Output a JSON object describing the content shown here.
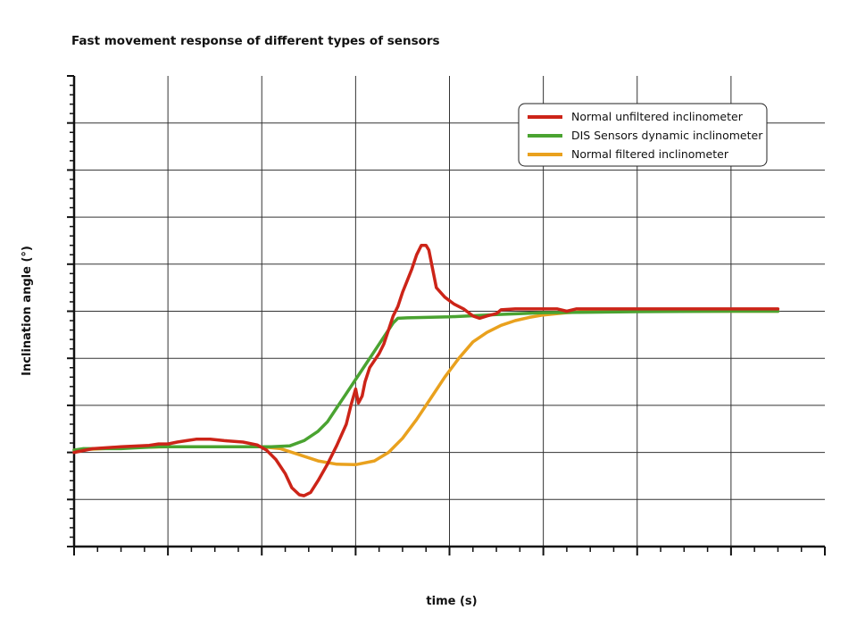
{
  "chart_data": {
    "type": "line",
    "title": "Fast movement response of different types of sensors",
    "xlabel": "time (s)",
    "ylabel": "Inclination angle (°)",
    "xlim": [
      0,
      8
    ],
    "ylim": [
      -2,
      8
    ],
    "grid": true,
    "legend_position": "top-right",
    "series": [
      {
        "name": "Normal unfiltered inclinometer",
        "color": "#cc2418",
        "points": [
          [
            0.0,
            0.0
          ],
          [
            0.2,
            0.08
          ],
          [
            0.5,
            0.12
          ],
          [
            0.8,
            0.15
          ],
          [
            0.9,
            0.18
          ],
          [
            1.0,
            0.18
          ],
          [
            1.1,
            0.22
          ],
          [
            1.2,
            0.25
          ],
          [
            1.3,
            0.28
          ],
          [
            1.45,
            0.28
          ],
          [
            1.6,
            0.25
          ],
          [
            1.8,
            0.22
          ],
          [
            1.95,
            0.16
          ],
          [
            2.05,
            0.05
          ],
          [
            2.15,
            -0.15
          ],
          [
            2.25,
            -0.45
          ],
          [
            2.32,
            -0.75
          ],
          [
            2.4,
            -0.9
          ],
          [
            2.45,
            -0.92
          ],
          [
            2.52,
            -0.85
          ],
          [
            2.6,
            -0.6
          ],
          [
            2.7,
            -0.25
          ],
          [
            2.8,
            0.15
          ],
          [
            2.9,
            0.6
          ],
          [
            2.95,
            1.0
          ],
          [
            3.0,
            1.35
          ],
          [
            3.03,
            1.05
          ],
          [
            3.07,
            1.2
          ],
          [
            3.1,
            1.5
          ],
          [
            3.15,
            1.8
          ],
          [
            3.2,
            1.95
          ],
          [
            3.25,
            2.1
          ],
          [
            3.3,
            2.3
          ],
          [
            3.35,
            2.6
          ],
          [
            3.4,
            2.9
          ],
          [
            3.45,
            3.1
          ],
          [
            3.5,
            3.4
          ],
          [
            3.55,
            3.65
          ],
          [
            3.6,
            3.9
          ],
          [
            3.65,
            4.2
          ],
          [
            3.7,
            4.4
          ],
          [
            3.75,
            4.4
          ],
          [
            3.78,
            4.3
          ],
          [
            3.82,
            3.9
          ],
          [
            3.86,
            3.5
          ],
          [
            3.95,
            3.3
          ],
          [
            4.05,
            3.15
          ],
          [
            4.15,
            3.05
          ],
          [
            4.25,
            2.9
          ],
          [
            4.32,
            2.85
          ],
          [
            4.4,
            2.9
          ],
          [
            4.5,
            2.95
          ],
          [
            4.55,
            3.03
          ],
          [
            4.7,
            3.05
          ],
          [
            5.0,
            3.05
          ],
          [
            5.15,
            3.05
          ],
          [
            5.25,
            3.0
          ],
          [
            5.35,
            3.05
          ],
          [
            5.5,
            3.05
          ],
          [
            6.0,
            3.05
          ],
          [
            7.0,
            3.05
          ],
          [
            7.5,
            3.05
          ]
        ]
      },
      {
        "name": "DIS Sensors dynamic inclinometer",
        "color": "#4aa331",
        "points": [
          [
            0.0,
            0.05
          ],
          [
            0.1,
            0.08
          ],
          [
            0.3,
            0.08
          ],
          [
            0.5,
            0.08
          ],
          [
            0.7,
            0.1
          ],
          [
            0.9,
            0.12
          ],
          [
            1.2,
            0.12
          ],
          [
            1.5,
            0.12
          ],
          [
            1.8,
            0.12
          ],
          [
            2.1,
            0.12
          ],
          [
            2.3,
            0.14
          ],
          [
            2.45,
            0.25
          ],
          [
            2.6,
            0.45
          ],
          [
            2.7,
            0.65
          ],
          [
            2.8,
            0.95
          ],
          [
            2.9,
            1.25
          ],
          [
            3.0,
            1.55
          ],
          [
            3.1,
            1.85
          ],
          [
            3.2,
            2.15
          ],
          [
            3.3,
            2.45
          ],
          [
            3.4,
            2.75
          ],
          [
            3.45,
            2.85
          ],
          [
            3.55,
            2.86
          ],
          [
            4.0,
            2.88
          ],
          [
            4.5,
            2.93
          ],
          [
            5.0,
            2.97
          ],
          [
            5.5,
            2.98
          ],
          [
            6.0,
            2.99
          ],
          [
            7.0,
            3.0
          ],
          [
            7.5,
            3.0
          ]
        ]
      },
      {
        "name": "Normal filtered inclinometer",
        "color": "#e9a11e",
        "points": [
          [
            0.0,
            0.05
          ],
          [
            0.5,
            0.1
          ],
          [
            1.0,
            0.12
          ],
          [
            1.5,
            0.12
          ],
          [
            2.0,
            0.12
          ],
          [
            2.2,
            0.08
          ],
          [
            2.4,
            -0.05
          ],
          [
            2.6,
            -0.18
          ],
          [
            2.8,
            -0.25
          ],
          [
            3.0,
            -0.26
          ],
          [
            3.2,
            -0.18
          ],
          [
            3.35,
            0.0
          ],
          [
            3.5,
            0.3
          ],
          [
            3.65,
            0.7
          ],
          [
            3.8,
            1.15
          ],
          [
            3.95,
            1.6
          ],
          [
            4.1,
            2.0
          ],
          [
            4.25,
            2.35
          ],
          [
            4.4,
            2.55
          ],
          [
            4.55,
            2.7
          ],
          [
            4.7,
            2.8
          ],
          [
            4.85,
            2.87
          ],
          [
            5.0,
            2.92
          ],
          [
            5.25,
            2.97
          ],
          [
            5.5,
            3.0
          ],
          [
            6.0,
            3.0
          ],
          [
            7.0,
            3.0
          ],
          [
            7.5,
            3.0
          ]
        ]
      }
    ]
  }
}
